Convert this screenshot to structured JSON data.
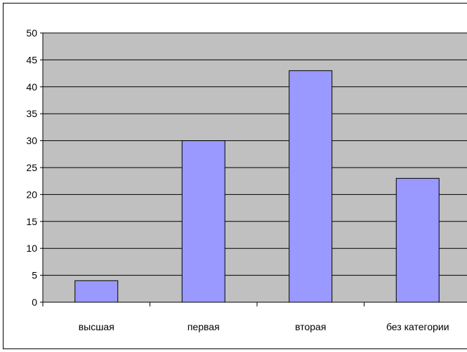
{
  "chart_data": {
    "type": "bar",
    "title": "",
    "xlabel": "",
    "ylabel": "",
    "categories": [
      "высшая",
      "первая",
      "вторая",
      "без категории"
    ],
    "values": [
      4,
      30,
      43,
      23
    ],
    "ylim": [
      0,
      50
    ],
    "yticks": [
      "0",
      "5",
      "10",
      "15",
      "20",
      "25",
      "30",
      "35",
      "40",
      "45",
      "50"
    ],
    "grid": true,
    "legend": "none",
    "colors": {
      "bar_fill": "#9999ff",
      "bar_stroke": "#000000",
      "plot_background": "#c0c0c0",
      "gridline": "#000000"
    }
  }
}
